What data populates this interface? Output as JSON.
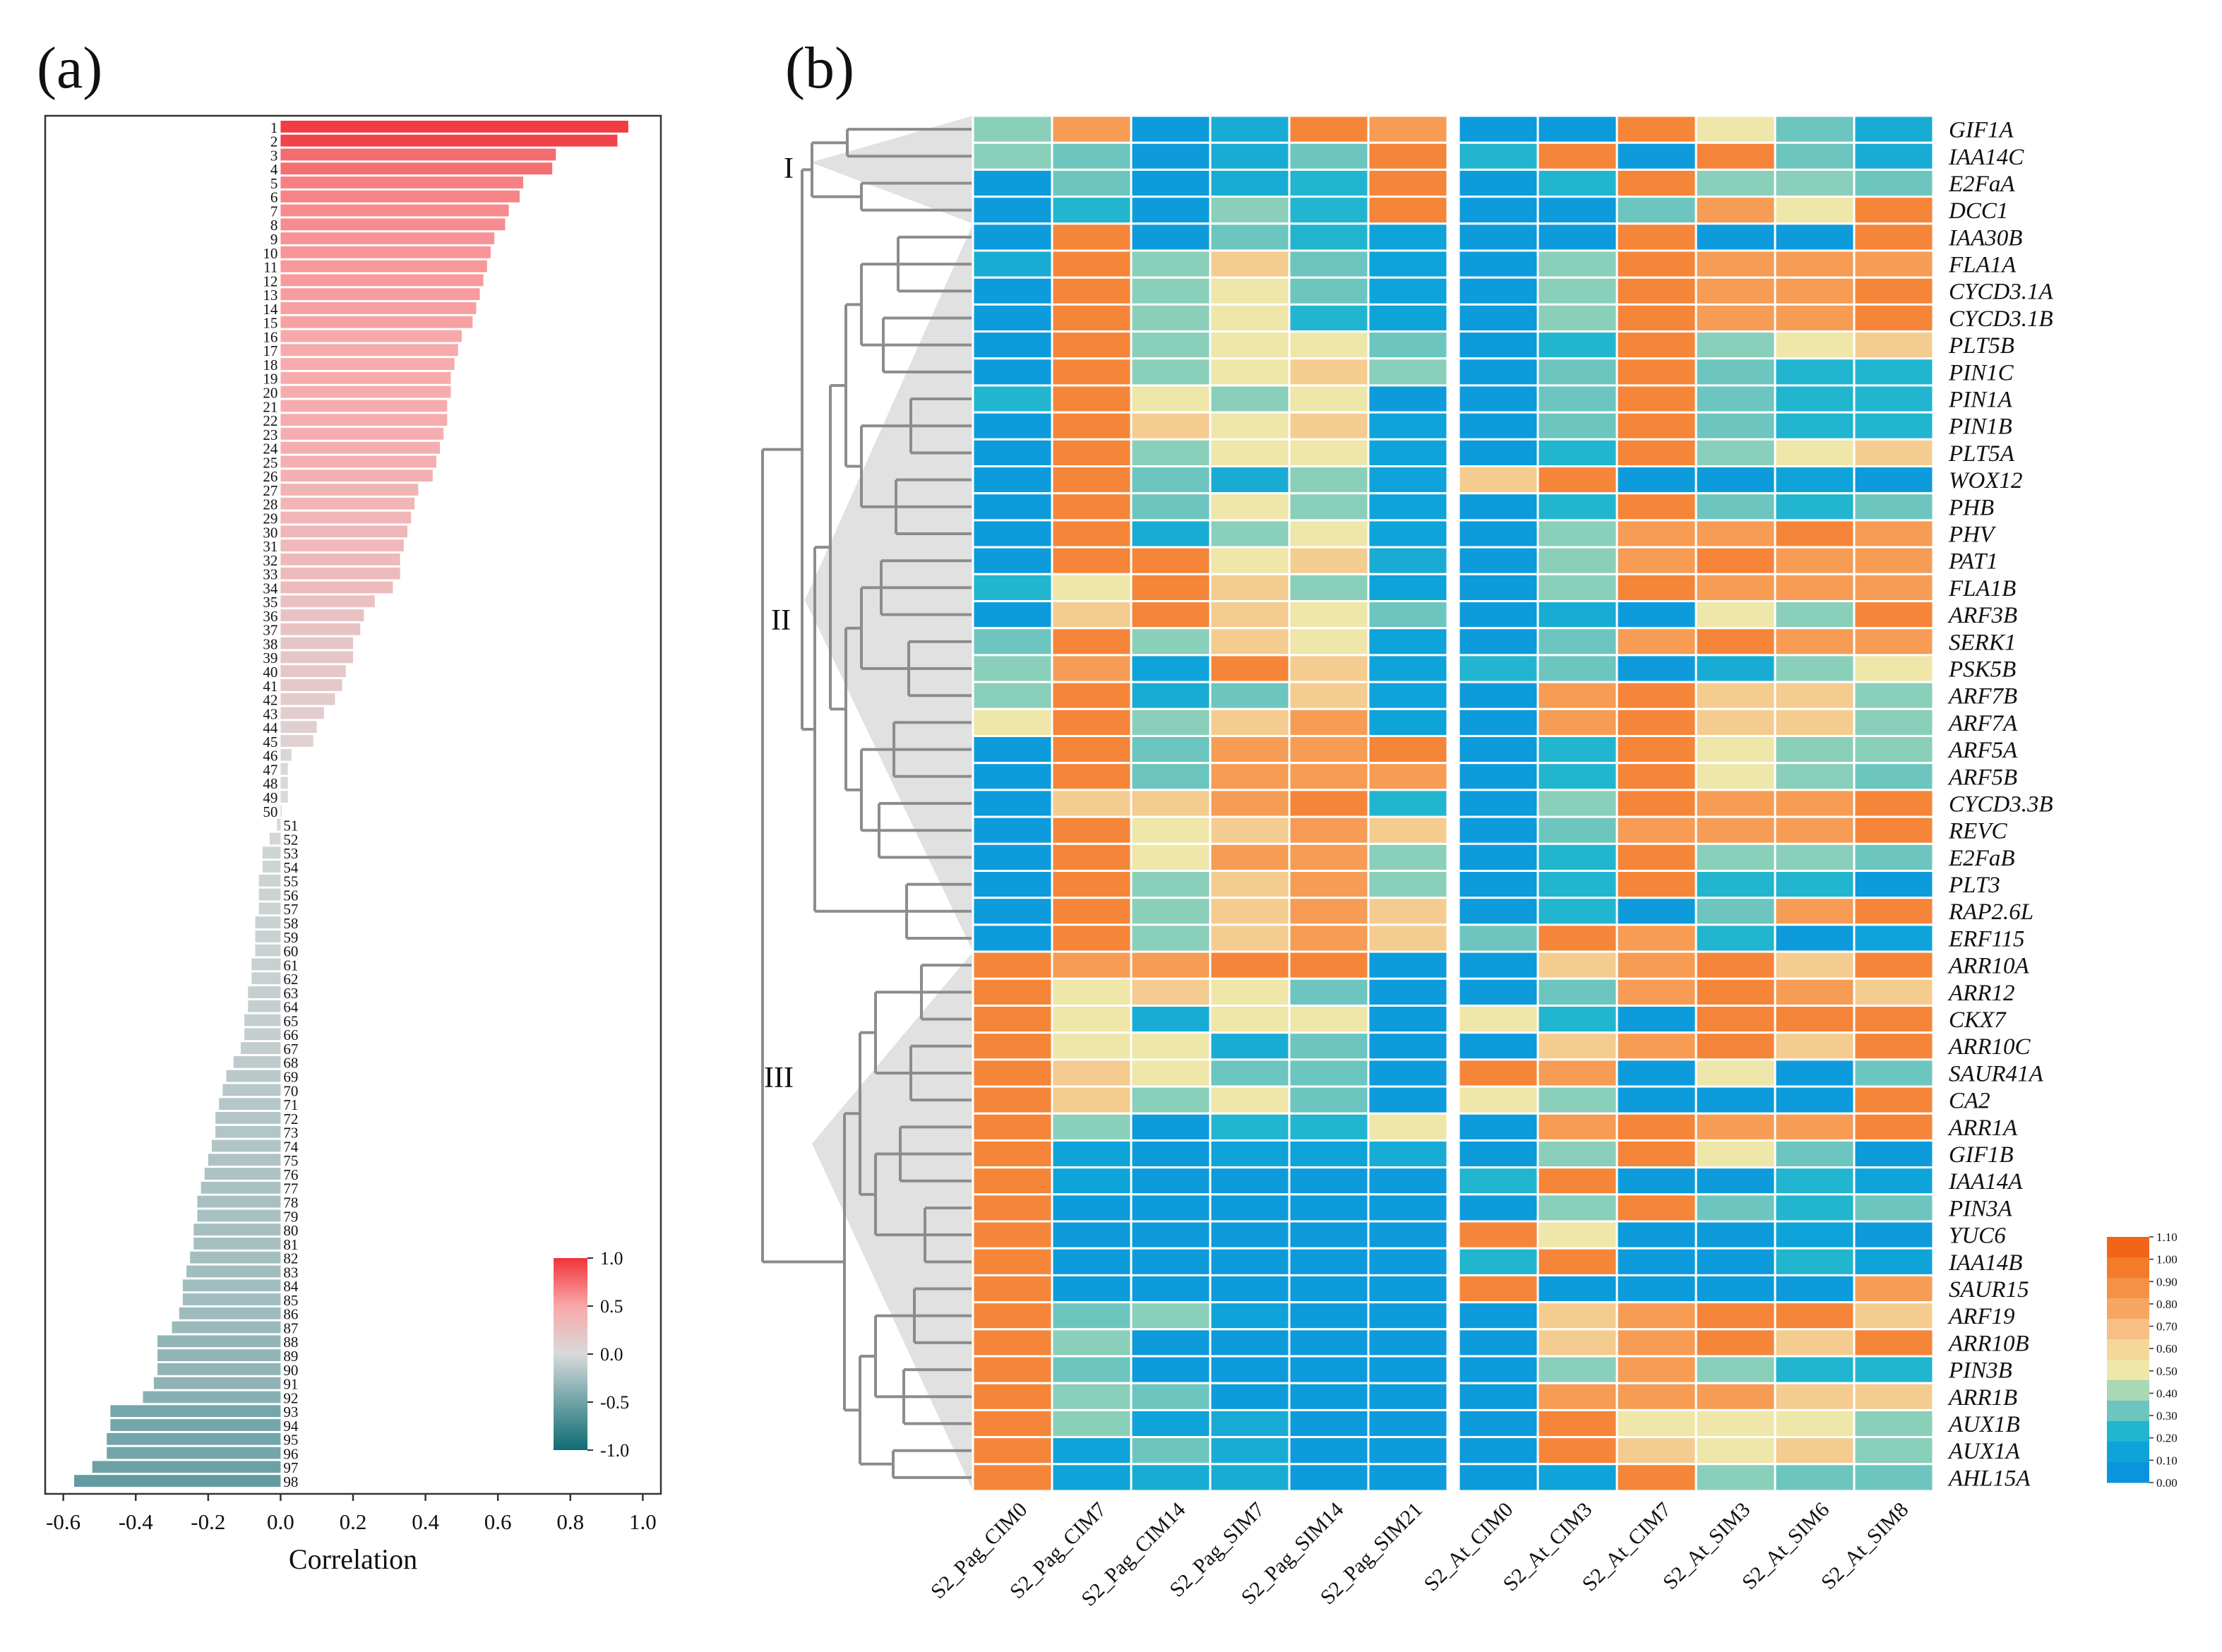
{
  "chart_data": [
    {
      "type": "bar",
      "orientation": "horizontal",
      "panel_label": "(a)",
      "xlabel": "Correlation",
      "xlim": [
        -0.65,
        1.05
      ],
      "xticks": [
        "-0.6",
        "-0.4",
        "-0.2",
        "0.0",
        "0.2",
        "0.4",
        "0.6",
        "0.8",
        "1.0"
      ],
      "xtick_values": [
        -0.6,
        -0.4,
        -0.2,
        0.0,
        0.2,
        0.4,
        0.6,
        0.8,
        1.0
      ],
      "colorbar": {
        "labels": [
          "1.0",
          "0.5",
          "0.0",
          "-0.5",
          "-1.0"
        ],
        "colors": [
          "#f0333a",
          "#f9a8aa",
          "#d9d9d9",
          "#6fa3a7",
          "#0f6b73"
        ]
      },
      "categories": [
        "1",
        "2",
        "3",
        "4",
        "5",
        "6",
        "7",
        "8",
        "9",
        "10",
        "11",
        "12",
        "13",
        "14",
        "15",
        "16",
        "17",
        "18",
        "19",
        "20",
        "21",
        "22",
        "23",
        "24",
        "25",
        "26",
        "27",
        "28",
        "29",
        "30",
        "31",
        "32",
        "33",
        "34",
        "35",
        "36",
        "37",
        "38",
        "39",
        "40",
        "41",
        "42",
        "43",
        "44",
        "45",
        "46",
        "47",
        "48",
        "49",
        "50",
        "51",
        "52",
        "53",
        "54",
        "55",
        "56",
        "57",
        "58",
        "59",
        "60",
        "61",
        "62",
        "63",
        "64",
        "65",
        "66",
        "67",
        "68",
        "69",
        "70",
        "71",
        "72",
        "73",
        "74",
        "75",
        "76",
        "77",
        "78",
        "79",
        "80",
        "81",
        "82",
        "83",
        "84",
        "85",
        "86",
        "87",
        "88",
        "89",
        "90",
        "91",
        "92",
        "93",
        "94",
        "95",
        "96",
        "97",
        "98"
      ],
      "values": [
        0.96,
        0.93,
        0.76,
        0.75,
        0.67,
        0.66,
        0.63,
        0.62,
        0.59,
        0.58,
        0.57,
        0.56,
        0.55,
        0.54,
        0.53,
        0.5,
        0.49,
        0.48,
        0.47,
        0.47,
        0.46,
        0.46,
        0.45,
        0.44,
        0.43,
        0.42,
        0.38,
        0.37,
        0.36,
        0.35,
        0.34,
        0.33,
        0.33,
        0.31,
        0.26,
        0.23,
        0.22,
        0.2,
        0.2,
        0.18,
        0.17,
        0.15,
        0.12,
        0.1,
        0.09,
        0.03,
        0.02,
        0.02,
        0.02,
        0.0,
        -0.01,
        -0.03,
        -0.05,
        -0.05,
        -0.06,
        -0.06,
        -0.06,
        -0.07,
        -0.07,
        -0.07,
        -0.08,
        -0.08,
        -0.09,
        -0.09,
        -0.1,
        -0.1,
        -0.11,
        -0.13,
        -0.15,
        -0.16,
        -0.17,
        -0.18,
        -0.18,
        -0.19,
        -0.2,
        -0.21,
        -0.22,
        -0.23,
        -0.23,
        -0.24,
        -0.24,
        -0.25,
        -0.26,
        -0.27,
        -0.27,
        -0.28,
        -0.3,
        -0.34,
        -0.34,
        -0.34,
        -0.35,
        -0.38,
        -0.47,
        -0.47,
        -0.48,
        -0.48,
        -0.52,
        -0.57
      ]
    },
    {
      "type": "heatmap",
      "panel_label": "(b)",
      "clusters": [
        "I",
        "II",
        "III"
      ],
      "columns_group1": [
        "S2_Pag_CIM0",
        "S2_Pag_CIM7",
        "S2_Pag_CIM14",
        "S2_Pag_SIM7",
        "S2_Pag_SIM14",
        "S2_Pag_SIM21"
      ],
      "columns_group2": [
        "S2_At_CIM0",
        "S2_At_CIM3",
        "S2_At_CIM7",
        "S2_At_SIM3",
        "S2_At_SIM6",
        "S2_At_SIM8"
      ],
      "rows": [
        "GIF1A",
        "IAA14C",
        "E2FaA",
        "DCC1",
        "IAA30B",
        "FLA1A",
        "CYCD3.1A",
        "CYCD3.1B",
        "PLT5B",
        "PIN1C",
        "PIN1A",
        "PIN1B",
        "PLT5A",
        "WOX12",
        "PHB",
        "PHV",
        "PAT1",
        "FLA1B",
        "ARF3B",
        "SERK1",
        "PSK5B",
        "ARF7B",
        "ARF7A",
        "ARF5A",
        "ARF5B",
        "CYCD3.3B",
        "REVC",
        "E2FaB",
        "PLT3",
        "RAP2.6L",
        "ERF115",
        "ARR10A",
        "ARR12",
        "CKX7",
        "ARR10C",
        "SAUR41A",
        "CA2",
        "ARR1A",
        "GIF1B",
        "IAA14A",
        "PIN3A",
        "YUC6",
        "IAA14B",
        "SAUR15",
        "ARF19",
        "ARR10B",
        "PIN3B",
        "ARR1B",
        "AUX1B",
        "AUX1A",
        "AHL15A"
      ],
      "values": [
        [
          0.35,
          0.85,
          0.05,
          0.15,
          0.95,
          0.85,
          0.05,
          0.05,
          0.95,
          0.5,
          0.3,
          0.15
        ],
        [
          0.35,
          0.3,
          0.05,
          0.15,
          0.3,
          0.95,
          0.2,
          0.95,
          0.05,
          0.95,
          0.3,
          0.15
        ],
        [
          0.05,
          0.3,
          0.05,
          0.15,
          0.2,
          0.95,
          0.05,
          0.2,
          0.95,
          0.35,
          0.35,
          0.3
        ],
        [
          0.05,
          0.2,
          0.05,
          0.35,
          0.2,
          0.95,
          0.05,
          0.05,
          0.3,
          0.85,
          0.5,
          0.95
        ],
        [
          0.05,
          0.95,
          0.05,
          0.3,
          0.2,
          0.1,
          0.05,
          0.05,
          0.95,
          0.05,
          0.05,
          0.95
        ],
        [
          0.15,
          0.95,
          0.35,
          0.65,
          0.3,
          0.1,
          0.05,
          0.35,
          0.95,
          0.85,
          0.85,
          0.85
        ],
        [
          0.05,
          0.95,
          0.35,
          0.5,
          0.3,
          0.1,
          0.05,
          0.35,
          0.95,
          0.85,
          0.85,
          0.95
        ],
        [
          0.05,
          0.95,
          0.35,
          0.5,
          0.2,
          0.1,
          0.05,
          0.35,
          0.95,
          0.85,
          0.85,
          0.95
        ],
        [
          0.05,
          0.95,
          0.35,
          0.5,
          0.5,
          0.3,
          0.05,
          0.2,
          0.95,
          0.35,
          0.5,
          0.65
        ],
        [
          0.05,
          0.95,
          0.35,
          0.5,
          0.65,
          0.35,
          0.05,
          0.3,
          0.95,
          0.3,
          0.2,
          0.2
        ],
        [
          0.2,
          0.95,
          0.5,
          0.35,
          0.5,
          0.05,
          0.05,
          0.3,
          0.95,
          0.3,
          0.2,
          0.2
        ],
        [
          0.05,
          0.95,
          0.65,
          0.5,
          0.65,
          0.1,
          0.05,
          0.3,
          0.95,
          0.3,
          0.2,
          0.2
        ],
        [
          0.05,
          0.95,
          0.35,
          0.5,
          0.5,
          0.1,
          0.05,
          0.2,
          0.95,
          0.35,
          0.5,
          0.65
        ],
        [
          0.05,
          0.95,
          0.3,
          0.15,
          0.35,
          0.1,
          0.65,
          0.95,
          0.05,
          0.05,
          0.1,
          0.05
        ],
        [
          0.05,
          0.95,
          0.3,
          0.5,
          0.35,
          0.1,
          0.05,
          0.2,
          0.95,
          0.3,
          0.2,
          0.3
        ],
        [
          0.05,
          0.95,
          0.15,
          0.35,
          0.5,
          0.1,
          0.05,
          0.35,
          0.85,
          0.85,
          0.95,
          0.85
        ],
        [
          0.05,
          0.95,
          0.95,
          0.5,
          0.65,
          0.15,
          0.05,
          0.35,
          0.85,
          0.95,
          0.85,
          0.85
        ],
        [
          0.2,
          0.5,
          0.95,
          0.65,
          0.35,
          0.1,
          0.05,
          0.35,
          0.95,
          0.85,
          0.85,
          0.85
        ],
        [
          0.05,
          0.65,
          0.95,
          0.65,
          0.5,
          0.3,
          0.05,
          0.15,
          0.05,
          0.5,
          0.35,
          0.95
        ],
        [
          0.3,
          0.95,
          0.35,
          0.65,
          0.5,
          0.1,
          0.05,
          0.3,
          0.85,
          0.95,
          0.85,
          0.85
        ],
        [
          0.35,
          0.85,
          0.1,
          0.95,
          0.65,
          0.1,
          0.2,
          0.3,
          0.05,
          0.15,
          0.35,
          0.5
        ],
        [
          0.35,
          0.95,
          0.15,
          0.3,
          0.65,
          0.1,
          0.05,
          0.85,
          0.95,
          0.65,
          0.65,
          0.35
        ],
        [
          0.5,
          0.95,
          0.35,
          0.65,
          0.85,
          0.1,
          0.05,
          0.85,
          0.95,
          0.65,
          0.65,
          0.35
        ],
        [
          0.05,
          0.95,
          0.3,
          0.85,
          0.85,
          0.95,
          0.05,
          0.2,
          0.95,
          0.5,
          0.35,
          0.35
        ],
        [
          0.05,
          0.95,
          0.3,
          0.85,
          0.85,
          0.85,
          0.05,
          0.2,
          0.95,
          0.5,
          0.35,
          0.3
        ],
        [
          0.05,
          0.65,
          0.65,
          0.85,
          0.95,
          0.2,
          0.05,
          0.35,
          0.95,
          0.85,
          0.85,
          0.95
        ],
        [
          0.05,
          0.95,
          0.5,
          0.65,
          0.85,
          0.65,
          0.05,
          0.3,
          0.85,
          0.85,
          0.85,
          0.95
        ],
        [
          0.05,
          0.95,
          0.5,
          0.85,
          0.85,
          0.35,
          0.05,
          0.2,
          0.95,
          0.35,
          0.35,
          0.3
        ],
        [
          0.05,
          0.95,
          0.35,
          0.65,
          0.85,
          0.35,
          0.05,
          0.2,
          0.95,
          0.2,
          0.2,
          0.05
        ],
        [
          0.05,
          0.95,
          0.35,
          0.65,
          0.85,
          0.65,
          0.05,
          0.2,
          0.05,
          0.3,
          0.85,
          0.95
        ],
        [
          0.05,
          0.95,
          0.35,
          0.65,
          0.85,
          0.65,
          0.3,
          0.95,
          0.85,
          0.2,
          0.05,
          0.1
        ],
        [
          0.95,
          0.85,
          0.85,
          0.95,
          0.95,
          0.05,
          0.05,
          0.65,
          0.85,
          0.95,
          0.65,
          0.95
        ],
        [
          0.95,
          0.5,
          0.65,
          0.5,
          0.3,
          0.05,
          0.05,
          0.3,
          0.85,
          0.95,
          0.85,
          0.65
        ],
        [
          0.95,
          0.5,
          0.15,
          0.5,
          0.5,
          0.05,
          0.5,
          0.2,
          0.05,
          0.95,
          0.95,
          0.95
        ],
        [
          0.95,
          0.5,
          0.5,
          0.15,
          0.3,
          0.05,
          0.05,
          0.65,
          0.85,
          0.95,
          0.65,
          0.95
        ],
        [
          0.95,
          0.65,
          0.5,
          0.3,
          0.3,
          0.05,
          0.95,
          0.85,
          0.05,
          0.5,
          0.05,
          0.3
        ],
        [
          0.95,
          0.65,
          0.35,
          0.5,
          0.3,
          0.05,
          0.5,
          0.35,
          0.05,
          0.05,
          0.05,
          0.95
        ],
        [
          0.95,
          0.35,
          0.05,
          0.2,
          0.2,
          0.5,
          0.05,
          0.85,
          0.95,
          0.85,
          0.85,
          0.95
        ],
        [
          0.95,
          0.1,
          0.05,
          0.1,
          0.1,
          0.15,
          0.05,
          0.35,
          0.95,
          0.5,
          0.3,
          0.05
        ],
        [
          0.95,
          0.1,
          0.05,
          0.05,
          0.05,
          0.05,
          0.2,
          0.95,
          0.05,
          0.05,
          0.2,
          0.1
        ],
        [
          0.95,
          0.05,
          0.05,
          0.05,
          0.05,
          0.05,
          0.05,
          0.35,
          0.95,
          0.3,
          0.2,
          0.3
        ],
        [
          0.95,
          0.05,
          0.05,
          0.05,
          0.05,
          0.05,
          0.95,
          0.5,
          0.05,
          0.05,
          0.1,
          0.05
        ],
        [
          0.95,
          0.05,
          0.05,
          0.05,
          0.05,
          0.05,
          0.2,
          0.95,
          0.05,
          0.05,
          0.2,
          0.1
        ],
        [
          0.95,
          0.05,
          0.05,
          0.05,
          0.05,
          0.05,
          0.95,
          0.05,
          0.05,
          0.05,
          0.05,
          0.85
        ],
        [
          0.95,
          0.3,
          0.35,
          0.1,
          0.05,
          0.05,
          0.05,
          0.65,
          0.85,
          0.95,
          0.95,
          0.65
        ],
        [
          0.95,
          0.35,
          0.05,
          0.05,
          0.05,
          0.05,
          0.05,
          0.65,
          0.85,
          0.95,
          0.65,
          0.95
        ],
        [
          0.95,
          0.3,
          0.05,
          0.05,
          0.05,
          0.05,
          0.05,
          0.35,
          0.85,
          0.35,
          0.2,
          0.2
        ],
        [
          0.95,
          0.35,
          0.3,
          0.05,
          0.05,
          0.05,
          0.05,
          0.85,
          0.85,
          0.85,
          0.65,
          0.65
        ],
        [
          0.95,
          0.35,
          0.1,
          0.15,
          0.05,
          0.05,
          0.05,
          0.95,
          0.5,
          0.5,
          0.5,
          0.35
        ],
        [
          0.95,
          0.1,
          0.3,
          0.15,
          0.05,
          0.05,
          0.05,
          0.95,
          0.65,
          0.5,
          0.65,
          0.35
        ],
        [
          0.95,
          0.1,
          0.15,
          0.15,
          0.05,
          0.05,
          0.05,
          0.1,
          0.95,
          0.35,
          0.3,
          0.3
        ]
      ],
      "colorbar": {
        "labels": [
          "1.10",
          "1.00",
          "0.90",
          "0.80",
          "0.70",
          "0.60",
          "0.50",
          "0.40",
          "0.30",
          "0.20",
          "0.10",
          "0.00"
        ],
        "colors": [
          "#f26518",
          "#f47a2c",
          "#f59045",
          "#f7a763",
          "#f7bf84",
          "#f3d89a",
          "#efe6a9",
          "#a9d8b4",
          "#6cc6bf",
          "#21b5cf",
          "#0ea3d9",
          "#0b93de"
        ]
      }
    }
  ]
}
